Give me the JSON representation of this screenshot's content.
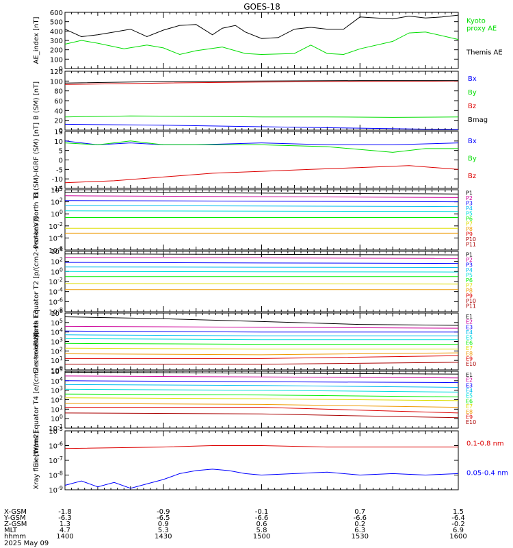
{
  "title": "GOES-18",
  "footer": {
    "row_labels": [
      "X-GSM",
      "Y-GSM",
      "Z-GSM",
      "MLT",
      "hhmm",
      "2025 May 09"
    ],
    "columns": [
      [
        "-1.8",
        "-6.3",
        "1.3",
        "4.7",
        "1400"
      ],
      [
        "-0.9",
        "-6.5",
        "0.9",
        "5.3",
        "1430"
      ],
      [
        "-0.1",
        "-6.6",
        "0.6",
        "5.8",
        "1500"
      ],
      [
        "0.7",
        "-6.6",
        "0.2",
        "6.3",
        "1530"
      ],
      [
        "1.5",
        "-6.4",
        "-0.2",
        "6.9",
        "1600"
      ]
    ]
  },
  "colors": {
    "black": "#000000",
    "blue": "#0000ff",
    "green": "#00dd00",
    "red": "#dd0000",
    "cyan": "#00bbee",
    "lime": "#00ee00",
    "aqua": "#00dddd",
    "yellow": "#dddd00",
    "orange": "#ee9900",
    "magenta": "#cc0099",
    "darkred": "#aa0000"
  },
  "chart_data": [
    {
      "type": "line",
      "ylabel": "AE_index [nT]",
      "ylim": [
        0,
        600
      ],
      "log": false,
      "yticks": [
        "0",
        "100",
        "200",
        "300",
        "400",
        "500",
        "600"
      ],
      "series": [
        {
          "name": "Kyoto proxy AE",
          "color": "#00dd00",
          "label_lines": [
            "Kyoto",
            "proxy AE"
          ],
          "x": [
            0,
            5,
            10,
            18,
            25,
            30,
            35,
            40,
            48,
            55,
            60,
            70,
            75,
            80,
            85,
            90,
            100,
            105,
            110,
            120
          ],
          "y": [
            260,
            300,
            270,
            210,
            250,
            220,
            150,
            190,
            230,
            160,
            150,
            160,
            250,
            160,
            150,
            210,
            290,
            380,
            390,
            310
          ]
        },
        {
          "name": "Themis AE",
          "color": "#000000",
          "label_lines": [
            "Themis AE"
          ],
          "x": [
            0,
            5,
            10,
            15,
            20,
            25,
            30,
            35,
            40,
            45,
            48,
            52,
            55,
            60,
            65,
            70,
            75,
            80,
            85,
            90,
            95,
            100,
            105,
            110,
            115,
            120
          ],
          "y": [
            420,
            340,
            360,
            390,
            420,
            340,
            410,
            460,
            470,
            360,
            430,
            460,
            390,
            320,
            330,
            420,
            440,
            420,
            420,
            550,
            540,
            530,
            560,
            540,
            550,
            570
          ]
        }
      ]
    },
    {
      "type": "line",
      "ylabel": "B (SM) [nT]",
      "ylim": [
        0,
        120
      ],
      "log": false,
      "yticks": [
        "0",
        "20",
        "40",
        "60",
        "80",
        "100",
        "120"
      ],
      "series": [
        {
          "name": "Bx",
          "color": "#0000ff",
          "x": [
            0,
            30,
            60,
            90,
            120
          ],
          "y": [
            12,
            10,
            7,
            4,
            1
          ]
        },
        {
          "name": "By",
          "color": "#00dd00",
          "x": [
            0,
            20,
            40,
            60,
            80,
            100,
            120
          ],
          "y": [
            27,
            29,
            28,
            27,
            27,
            26,
            27
          ]
        },
        {
          "name": "Bz",
          "color": "#dd0000",
          "x": [
            0,
            30,
            60,
            90,
            120
          ],
          "y": [
            93,
            96,
            98,
            99,
            100
          ]
        },
        {
          "name": "Bmag",
          "color": "#000000",
          "x": [
            0,
            30,
            60,
            90,
            120
          ],
          "y": [
            96,
            99,
            100,
            101,
            101
          ]
        }
      ]
    },
    {
      "type": "line",
      "ylabel": "B (SM)-IGRF (SM) [nT]",
      "ylim": [
        -15,
        15
      ],
      "log": false,
      "yticks": [
        "-15",
        "-10",
        "-5",
        "0",
        "5",
        "10",
        "15"
      ],
      "series": [
        {
          "name": "Bx",
          "color": "#0000ff",
          "x": [
            0,
            10,
            20,
            30,
            40,
            60,
            80,
            100,
            120
          ],
          "y": [
            10,
            8,
            9,
            8,
            8,
            9,
            8,
            8,
            9
          ]
        },
        {
          "name": "By",
          "color": "#00dd00",
          "x": [
            0,
            10,
            20,
            30,
            40,
            60,
            80,
            100,
            110,
            120
          ],
          "y": [
            9,
            8,
            10,
            8,
            8,
            8,
            7,
            4,
            6,
            6
          ]
        },
        {
          "name": "Bz",
          "color": "#dd0000",
          "x": [
            0,
            15,
            30,
            45,
            60,
            75,
            90,
            105,
            120
          ],
          "y": [
            -12,
            -11,
            -9,
            -7,
            -6,
            -5,
            -4,
            -3,
            -5
          ]
        }
      ]
    },
    {
      "type": "line",
      "ylabel": "Protons North T1",
      "ylim": [
        -6,
        4
      ],
      "log": true,
      "yticks": [
        "10^-6",
        "10^-4",
        "10^-2",
        "10^0",
        "10^2",
        "10^4"
      ],
      "series": [
        {
          "name": "P1",
          "color": "#000000",
          "x": [
            0,
            120
          ],
          "y": [
            3.6,
            3.3
          ]
        },
        {
          "name": "P2",
          "color": "#cc0099",
          "x": [
            0,
            120
          ],
          "y": [
            3.0,
            2.7
          ]
        },
        {
          "name": "P3",
          "color": "#0000ff",
          "x": [
            0,
            120
          ],
          "y": [
            2.2,
            2.0
          ]
        },
        {
          "name": "P4",
          "color": "#00bbee",
          "x": [
            0,
            120
          ],
          "y": [
            1.4,
            1.2
          ]
        },
        {
          "name": "P5",
          "color": "#00dddd",
          "x": [
            0,
            120
          ],
          "y": [
            0.5,
            0.4
          ]
        },
        {
          "name": "P6",
          "color": "#00ee00",
          "x": [
            0,
            120
          ],
          "y": [
            -0.6,
            -0.6
          ]
        },
        {
          "name": "P7",
          "color": "#dddd00",
          "x": [
            0,
            120
          ],
          "y": [
            -2.4,
            -2.4
          ]
        },
        {
          "name": "P8",
          "color": "#ee9900",
          "x": [
            0,
            120
          ],
          "y": [
            -3.2,
            -3.2
          ]
        },
        {
          "name": "P9",
          "color": "#dd0000",
          "x": [],
          "y": []
        },
        {
          "name": "P10",
          "color": "#aa0000",
          "x": [],
          "y": []
        },
        {
          "name": "P11",
          "color": "#aa0000",
          "x": [],
          "y": []
        }
      ]
    },
    {
      "type": "line",
      "ylabel": "Protons Equator T2 [p/(cm2-s-sr-keV)]",
      "ylim": [
        -8,
        4
      ],
      "log": true,
      "yticks": [
        "10^-8",
        "10^-6",
        "10^-4",
        "10^-2",
        "10^0",
        "10^2",
        "10^4"
      ],
      "series": [
        {
          "name": "P1",
          "color": "#000000",
          "x": [
            0,
            120
          ],
          "y": [
            3.5,
            3.3
          ]
        },
        {
          "name": "P2",
          "color": "#cc0099",
          "x": [
            0,
            120
          ],
          "y": [
            2.8,
            2.6
          ]
        },
        {
          "name": "P3",
          "color": "#0000ff",
          "x": [
            0,
            120
          ],
          "y": [
            1.8,
            1.6
          ]
        },
        {
          "name": "P4",
          "color": "#00bbee",
          "x": [
            0,
            120
          ],
          "y": [
            0.9,
            0.8
          ]
        },
        {
          "name": "P5",
          "color": "#00dddd",
          "x": [
            0,
            120
          ],
          "y": [
            0.0,
            -0.1
          ]
        },
        {
          "name": "P6",
          "color": "#00ee00",
          "x": [
            0,
            120
          ],
          "y": [
            -1.0,
            -1.0
          ]
        },
        {
          "name": "P7",
          "color": "#dddd00",
          "x": [
            0,
            120
          ],
          "y": [
            -2.4,
            -2.5
          ]
        },
        {
          "name": "P8",
          "color": "#ee9900",
          "x": [
            0,
            120
          ],
          "y": [
            -3.6,
            -3.6
          ]
        },
        {
          "name": "P9",
          "color": "#dd0000",
          "x": [],
          "y": []
        },
        {
          "name": "P10",
          "color": "#aa0000",
          "x": [],
          "y": []
        },
        {
          "name": "P11",
          "color": "#aa0000",
          "x": [],
          "y": []
        }
      ]
    },
    {
      "type": "line",
      "ylabel": "Electrons North T3",
      "ylim": [
        0,
        6
      ],
      "log": true,
      "yticks": [
        "10^0",
        "10^1",
        "10^2",
        "10^3",
        "10^4",
        "10^5",
        "10^6"
      ],
      "series": [
        {
          "name": "E1",
          "color": "#000000",
          "x": [
            0,
            30,
            60,
            90,
            120
          ],
          "y": [
            5.6,
            5.4,
            5.1,
            4.8,
            4.7
          ]
        },
        {
          "name": "E2",
          "color": "#cc0099",
          "x": [
            0,
            60,
            120
          ],
          "y": [
            4.6,
            4.5,
            4.4
          ]
        },
        {
          "name": "E3",
          "color": "#0000ff",
          "x": [
            0,
            60,
            120
          ],
          "y": [
            4.1,
            4.0,
            4.0
          ]
        },
        {
          "name": "E4",
          "color": "#00bbee",
          "x": [
            0,
            60,
            120
          ],
          "y": [
            3.7,
            3.6,
            3.6
          ]
        },
        {
          "name": "E5",
          "color": "#00dddd",
          "x": [
            0,
            60,
            120
          ],
          "y": [
            3.3,
            3.2,
            3.2
          ]
        },
        {
          "name": "E6",
          "color": "#00ee00",
          "x": [
            0,
            60,
            120
          ],
          "y": [
            2.8,
            2.7,
            2.7
          ]
        },
        {
          "name": "E7",
          "color": "#dddd00",
          "x": [
            0,
            60,
            120
          ],
          "y": [
            2.3,
            2.2,
            2.2
          ]
        },
        {
          "name": "E8",
          "color": "#ee9900",
          "x": [
            0,
            60,
            120
          ],
          "y": [
            1.7,
            1.6,
            1.8
          ]
        },
        {
          "name": "E9",
          "color": "#dd0000",
          "x": [
            0,
            60,
            120
          ],
          "y": [
            1.2,
            1.2,
            1.5
          ]
        },
        {
          "name": "E10",
          "color": "#aa0000",
          "x": [
            0,
            60,
            120
          ],
          "y": [
            0.6,
            0.6,
            0.8
          ]
        }
      ]
    },
    {
      "type": "line",
      "ylabel": "Electrons Equator T4 [e/(cm2-s-sr-keV)]",
      "ylim": [
        -1,
        5
      ],
      "log": true,
      "yticks": [
        "10^-1",
        "10^0",
        "10^1",
        "10^2",
        "10^3",
        "10^4",
        "10^5"
      ],
      "series": [
        {
          "name": "E1",
          "color": "#000000",
          "x": [
            0,
            60,
            120
          ],
          "y": [
            4.9,
            4.8,
            4.7
          ]
        },
        {
          "name": "E2",
          "color": "#cc0099",
          "x": [
            0,
            60,
            120
          ],
          "y": [
            4.5,
            4.4,
            4.3
          ]
        },
        {
          "name": "E3",
          "color": "#0000ff",
          "x": [
            0,
            60,
            120
          ],
          "y": [
            4.0,
            3.9,
            3.8
          ]
        },
        {
          "name": "E4",
          "color": "#00bbee",
          "x": [
            0,
            60,
            120
          ],
          "y": [
            3.6,
            3.5,
            3.3
          ]
        },
        {
          "name": "E5",
          "color": "#00dddd",
          "x": [
            0,
            60,
            120
          ],
          "y": [
            3.1,
            3.0,
            2.8
          ]
        },
        {
          "name": "E6",
          "color": "#00ee00",
          "x": [
            0,
            60,
            120
          ],
          "y": [
            2.6,
            2.5,
            2.3
          ]
        },
        {
          "name": "E7",
          "color": "#dddd00",
          "x": [
            0,
            60,
            120
          ],
          "y": [
            2.2,
            2.1,
            1.9
          ]
        },
        {
          "name": "E8",
          "color": "#ee9900",
          "x": [
            0,
            60,
            120
          ],
          "y": [
            1.6,
            1.5,
            1.2
          ]
        },
        {
          "name": "E9",
          "color": "#dd0000",
          "x": [
            0,
            60,
            120
          ],
          "y": [
            1.2,
            1.2,
            0.6
          ]
        },
        {
          "name": "E10",
          "color": "#aa0000",
          "x": [
            0,
            60,
            120
          ],
          "y": [
            0.6,
            0.5,
            0.1
          ]
        }
      ]
    },
    {
      "type": "line",
      "ylabel": "Xray flux [W/m2]",
      "ylim": [
        -9,
        -5
      ],
      "log": true,
      "yticks": [
        "10^-9",
        "10^-8",
        "10^-7",
        "10^-6",
        "10^-5"
      ],
      "series": [
        {
          "name": "0.1-0.8 nm",
          "color": "#dd0000",
          "label_lines": [
            "0.1-0.8 nm"
          ],
          "x": [
            0,
            30,
            45,
            60,
            80,
            100,
            120
          ],
          "y": [
            -6.2,
            -6.1,
            -6.0,
            -6.0,
            -6.1,
            -6.1,
            -6.1
          ]
        },
        {
          "name": "0.05-0.4 nm",
          "color": "#0000ff",
          "label_lines": [
            "0.05-0.4 nm"
          ],
          "x": [
            0,
            5,
            10,
            15,
            20,
            25,
            30,
            35,
            40,
            45,
            50,
            55,
            60,
            70,
            80,
            90,
            100,
            110,
            120
          ],
          "y": [
            -8.7,
            -8.4,
            -8.8,
            -8.5,
            -8.9,
            -8.6,
            -8.3,
            -7.9,
            -7.7,
            -7.6,
            -7.7,
            -7.9,
            -8.0,
            -7.9,
            -7.8,
            -8.0,
            -7.9,
            -8.0,
            -7.9
          ]
        }
      ]
    }
  ]
}
